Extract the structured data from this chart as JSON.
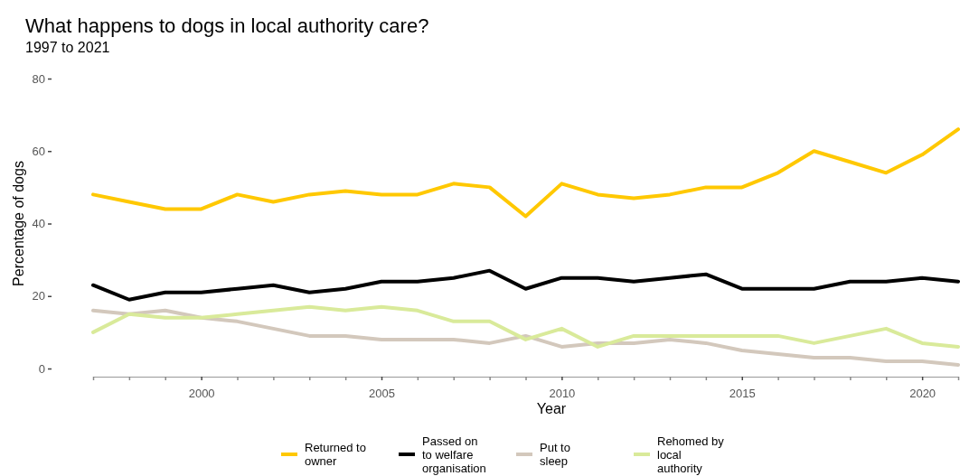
{
  "chart_data": {
    "type": "line",
    "title": "What happens to dogs in local authority care?",
    "subtitle": "1997 to 2021",
    "xlabel": "Year",
    "ylabel": "Percentage of dogs",
    "x": [
      1997,
      1998,
      1999,
      2000,
      2001,
      2002,
      2003,
      2004,
      2005,
      2006,
      2007,
      2008,
      2009,
      2010,
      2011,
      2012,
      2013,
      2014,
      2015,
      2016,
      2017,
      2018,
      2019,
      2020,
      2021
    ],
    "xlim": [
      1997,
      2021
    ],
    "xticks": [
      {
        "value": 1997,
        "label": null
      },
      {
        "value": 1998,
        "label": null
      },
      {
        "value": 1999,
        "label": null
      },
      2000,
      {
        "value": 2001,
        "label": null
      },
      {
        "value": 2002,
        "label": null
      },
      {
        "value": 2003,
        "label": null
      },
      {
        "value": 2004,
        "label": null
      },
      2005,
      {
        "value": 2006,
        "label": null
      },
      {
        "value": 2007,
        "label": null
      },
      {
        "value": 2008,
        "label": null
      },
      {
        "value": 2009,
        "label": null
      },
      2010,
      {
        "value": 2011,
        "label": null
      },
      {
        "value": 2012,
        "label": null
      },
      {
        "value": 2013,
        "label": null
      },
      {
        "value": 2014,
        "label": null
      },
      2015,
      {
        "value": 2016,
        "label": null
      },
      {
        "value": 2017,
        "label": null
      },
      {
        "value": 2018,
        "label": null
      },
      {
        "value": 2019,
        "label": null
      },
      2020,
      {
        "value": 2021,
        "label": null
      }
    ],
    "ylim": [
      0,
      80
    ],
    "yticks": [
      0,
      20,
      40,
      60,
      80
    ],
    "grid": false,
    "legend": "bottom",
    "line_style": "solid",
    "marker": "none",
    "series": [
      {
        "name": "Returned to owner",
        "color": "#ffc800",
        "values": [
          48,
          46,
          44,
          44,
          48,
          46,
          48,
          49,
          48,
          48,
          51,
          50,
          42,
          51,
          48,
          47,
          48,
          50,
          50,
          54,
          60,
          57,
          54,
          59,
          66
        ]
      },
      {
        "name": "Passed on to welfare organisation",
        "color": "#000000",
        "values": [
          23,
          19,
          21,
          21,
          22,
          23,
          21,
          22,
          24,
          24,
          25,
          27,
          22,
          25,
          25,
          24,
          25,
          26,
          22,
          22,
          22,
          24,
          24,
          25,
          24
        ]
      },
      {
        "name": "Put to sleep",
        "color": "#d3c8bc",
        "values": [
          16,
          15,
          16,
          14,
          13,
          11,
          9,
          9,
          8,
          8,
          8,
          7,
          9,
          6,
          7,
          7,
          8,
          7,
          5,
          4,
          3,
          3,
          2,
          2,
          1
        ]
      },
      {
        "name": "Rehomed by local authority",
        "color": "#d9ea9a",
        "values": [
          10,
          15,
          14,
          14,
          15,
          16,
          17,
          16,
          17,
          16,
          13,
          13,
          8,
          11,
          6,
          9,
          9,
          9,
          9,
          9,
          7,
          9,
          11,
          7,
          6
        ]
      }
    ]
  }
}
